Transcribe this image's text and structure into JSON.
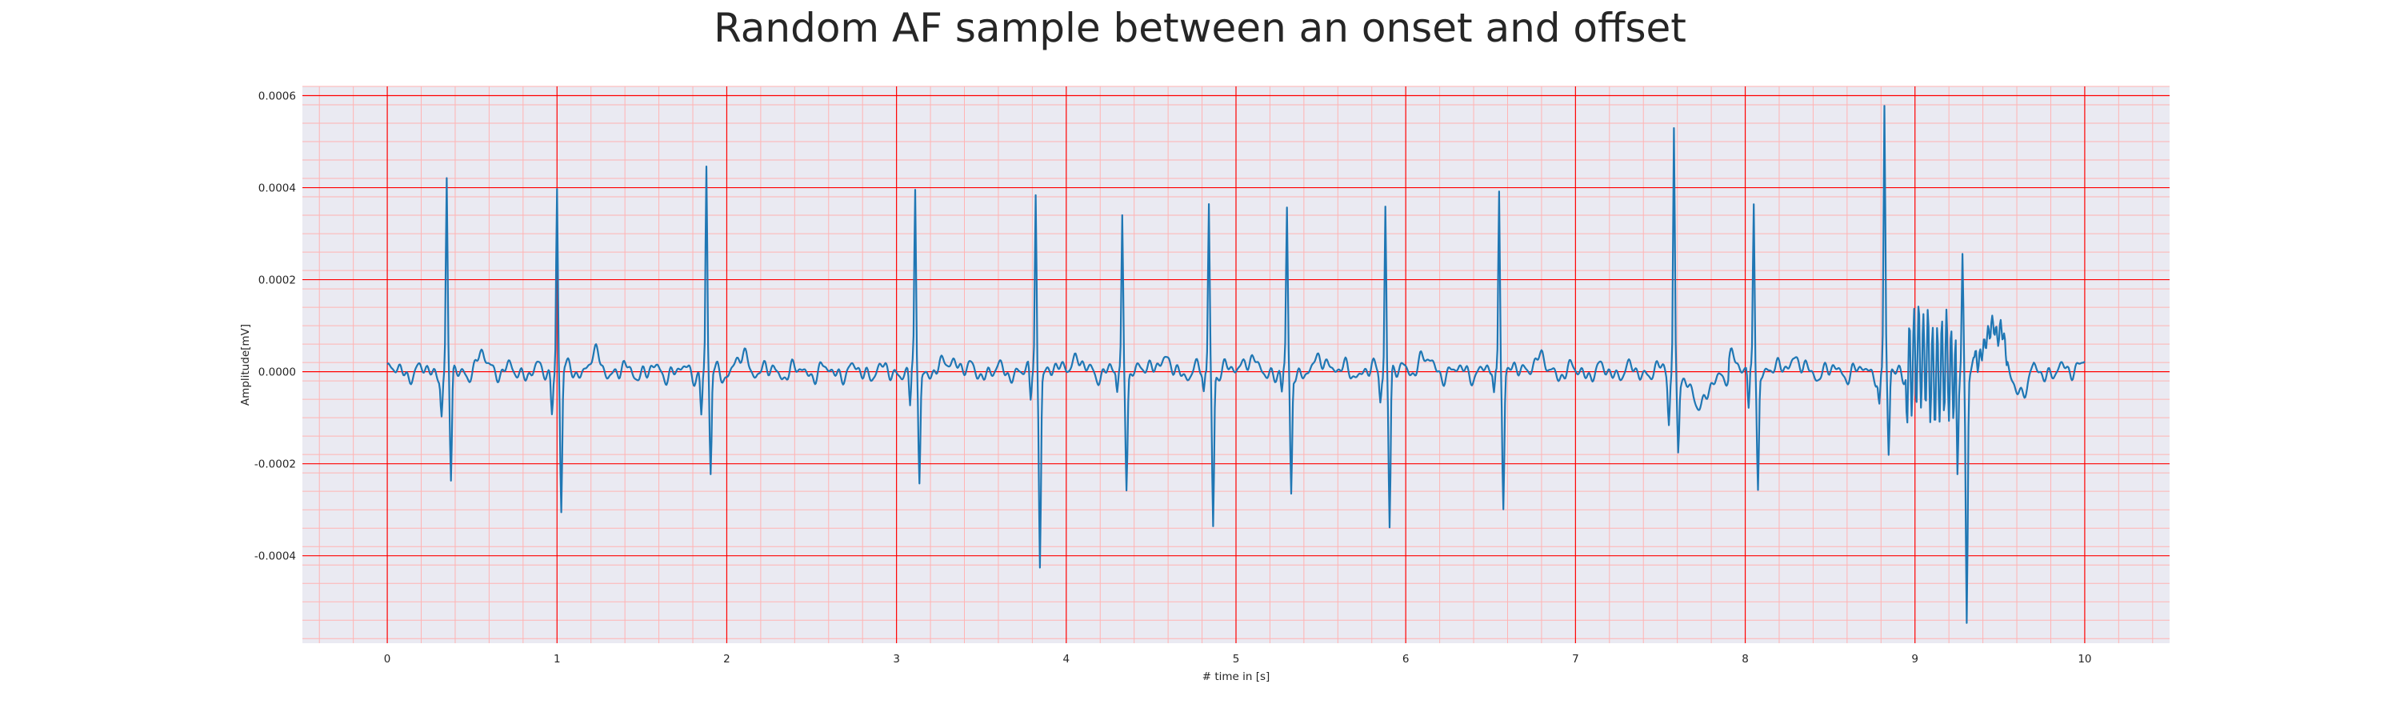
{
  "chart_data": {
    "type": "line",
    "title": "Random AF sample between an onset and offset",
    "xlabel": "# time in [s]",
    "ylabel": "Amplitude[mV]",
    "xlim": [
      -0.5,
      10.5
    ],
    "ylim": [
      -0.00059,
      0.00062
    ],
    "xticks": [
      0,
      1,
      2,
      3,
      4,
      5,
      6,
      7,
      8,
      9,
      10
    ],
    "xtick_labels": [
      "0",
      "1",
      "2",
      "3",
      "4",
      "5",
      "6",
      "7",
      "8",
      "9",
      "10"
    ],
    "yticks": [
      -0.0004,
      -0.0002,
      0.0,
      0.0002,
      0.0004,
      0.0006
    ],
    "ytick_labels": [
      "-0.0004",
      "-0.0002",
      "0.0000",
      "0.0002",
      "0.0004",
      "0.0006"
    ],
    "grid": true,
    "minor_grid": true,
    "line_color": "#1f77b4",
    "grid_major_color": "#ff0000",
    "grid_minor_color": "#ffb3b3",
    "background_color": "#eaeaf2",
    "series": [
      {
        "beats": [
          {
            "t": 0.35,
            "q": -8e-05,
            "r": 0.0004,
            "s": -0.00024
          },
          {
            "t": 1.0,
            "q": -8e-05,
            "r": 0.0004,
            "s": -0.0003
          },
          {
            "t": 1.88,
            "q": -9e-05,
            "r": 0.00044,
            "s": -0.00023
          },
          {
            "t": 3.11,
            "q": -8e-05,
            "r": 0.00038,
            "s": -0.00023
          },
          {
            "t": 3.82,
            "q": -7e-05,
            "r": 0.00038,
            "s": -0.0004
          },
          {
            "t": 4.33,
            "q": -5e-05,
            "r": 0.00033,
            "s": -0.00023
          },
          {
            "t": 4.84,
            "q": -5e-05,
            "r": 0.00037,
            "s": -0.00033
          },
          {
            "t": 5.3,
            "q": -5e-05,
            "r": 0.00034,
            "s": -0.00027
          },
          {
            "t": 5.88,
            "q": -6e-05,
            "r": 0.00037,
            "s": -0.00033
          },
          {
            "t": 6.55,
            "q": -6e-05,
            "r": 0.00041,
            "s": -0.00028
          },
          {
            "t": 7.58,
            "q": -0.0001,
            "r": 0.00053,
            "s": -0.00016
          },
          {
            "t": 8.05,
            "q": -0.0001,
            "r": 0.00038,
            "s": -0.00025
          },
          {
            "t": 8.82,
            "q": -7e-05,
            "r": 0.00057,
            "s": -0.00019
          },
          {
            "t": 9.28,
            "q": -0.00022,
            "r": 0.00027,
            "s": -0.00054
          }
        ]
      }
    ]
  }
}
